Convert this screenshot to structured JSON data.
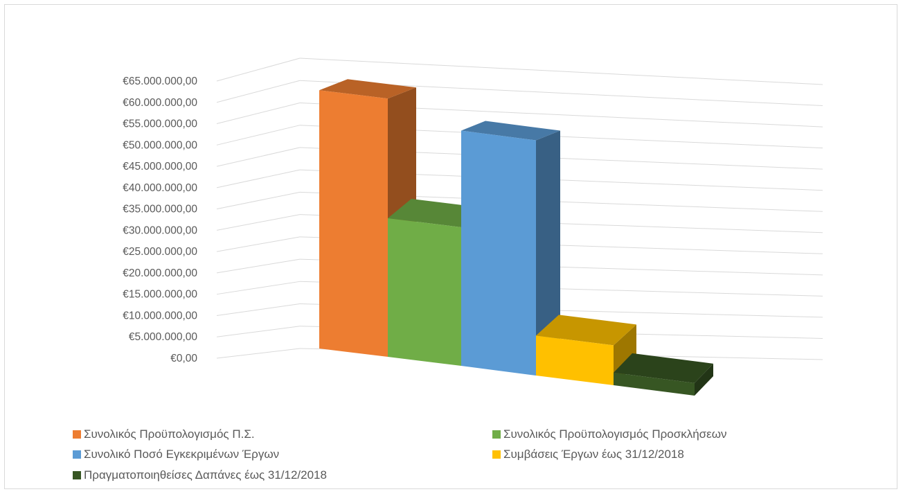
{
  "chart_data": {
    "type": "bar",
    "variant": "3d-column",
    "title": "",
    "xlabel": "",
    "ylabel": "",
    "ylim": [
      0,
      65000000
    ],
    "y_ticks": [
      "€0,00",
      "€5.000.000,00",
      "€10.000.000,00",
      "€15.000.000,00",
      "€20.000.000,00",
      "€25.000.000,00",
      "€30.000.000,00",
      "€35.000.000,00",
      "€40.000.000,00",
      "€45.000.000,00",
      "€50.000.000,00",
      "€55.000.000,00",
      "€60.000.000,00",
      "€65.000.000,00"
    ],
    "grid": true,
    "legend_position": "bottom",
    "series": [
      {
        "name": "Συνολικός Προϋπολογισμός Π.Σ.",
        "value": 61500000,
        "color": "#ED7D31"
      },
      {
        "name": "Συνολικός Προϋπολογισμός Προσκλήσεων",
        "value": 33000000,
        "color": "#70AD47"
      },
      {
        "name": "Συνολικό Ποσό Εγκεκριμένων Έργων",
        "value": 56000000,
        "color": "#5B9BD5"
      },
      {
        "name": "Συμβάσεις Έργων έως 31/12/2018",
        "value": 9500000,
        "color": "#FFC000"
      },
      {
        "name": "Πραγματοποιηθείσες Δαπάνες έως 31/12/2018",
        "value": 3000000,
        "color": "#375623"
      }
    ]
  }
}
